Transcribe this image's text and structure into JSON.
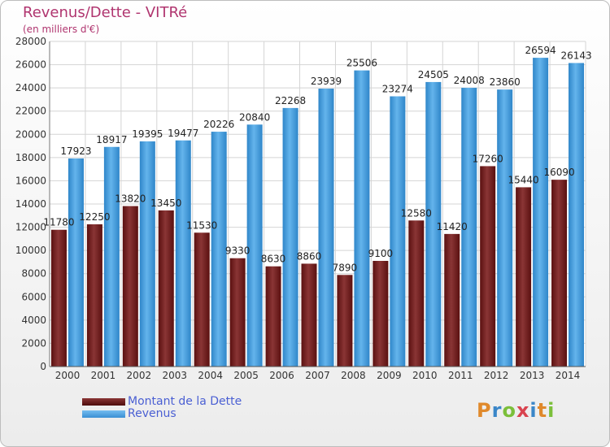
{
  "header": {
    "title": "Revenus/Dette - VITRé",
    "subtitle": "(en milliers d'€)"
  },
  "logo": {
    "text": "Proxiti",
    "colors": [
      "#e0892b",
      "#3a86c8",
      "#7bbf3a",
      "#d9434f",
      "#3a86c8",
      "#e0892b",
      "#7bbf3a"
    ]
  },
  "legend": {
    "position": "bottom-left",
    "items": [
      {
        "label": "Montant de la Dette",
        "color": "#7a1f1f"
      },
      {
        "label": "Revenus",
        "color": "#4a9fe0"
      }
    ]
  },
  "chart_data": {
    "type": "bar",
    "title": "Revenus/Dette - VITRé",
    "subtitle": "(en milliers d'€)",
    "xlabel": "",
    "ylabel": "",
    "ylim": [
      0,
      28000
    ],
    "ytick_step": 2000,
    "grid": true,
    "categories": [
      "2000",
      "2001",
      "2002",
      "2003",
      "2004",
      "2005",
      "2006",
      "2007",
      "2008",
      "2009",
      "2010",
      "2011",
      "2012",
      "2013",
      "2014"
    ],
    "series": [
      {
        "name": "Montant de la Dette",
        "color": "#7a1f1f",
        "values": [
          11780,
          12250,
          13820,
          13450,
          11530,
          9330,
          8630,
          8860,
          7890,
          9100,
          12580,
          11420,
          17260,
          15440,
          16090
        ],
        "labels": [
          "11780",
          "12250",
          "13820",
          "13450",
          "11530",
          "9330",
          "8630",
          "8860",
          "7890",
          "9100",
          "12580",
          "11420",
          "17260",
          "15440",
          "16090"
        ]
      },
      {
        "name": "Revenus",
        "color": "#4a9fe0",
        "values": [
          17923,
          18917,
          19395,
          19477,
          20226,
          20840,
          22268,
          23939,
          25506,
          23274,
          24505,
          24008,
          23860,
          26594,
          26143
        ],
        "labels": [
          "17923",
          "18917",
          "19395",
          "19477",
          "20226",
          "20840",
          "22268",
          "23939",
          "25506",
          "23274",
          "24505",
          "24008",
          "23860",
          "26594",
          "26143"
        ]
      }
    ]
  }
}
